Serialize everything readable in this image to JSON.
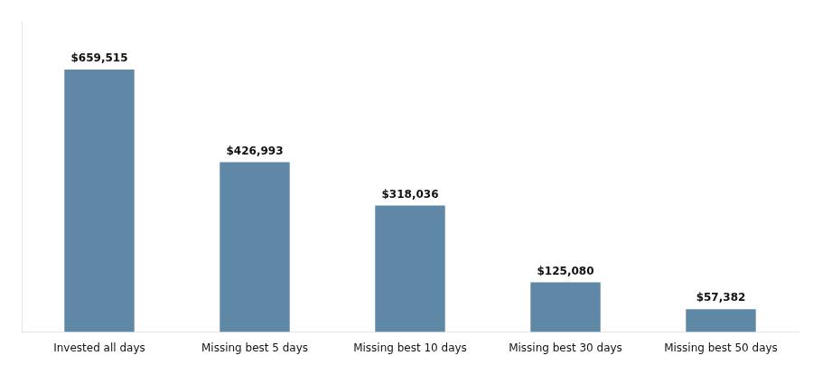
{
  "chart_data": {
    "type": "bar",
    "categories": [
      "Invested all days",
      "Missing best 5 days",
      "Missing best 10 days",
      "Missing best 30 days",
      "Missing best 50 days"
    ],
    "values": [
      659515,
      426993,
      318036,
      125080,
      57382
    ],
    "value_labels": [
      "$659,515",
      "$426,993",
      "$318,036",
      "$125,080",
      "$57,382"
    ],
    "data_labels": true,
    "color": "#5f87a6",
    "ylim": [
      0,
      780000
    ],
    "tick_labels": "x",
    "grid": false
  }
}
